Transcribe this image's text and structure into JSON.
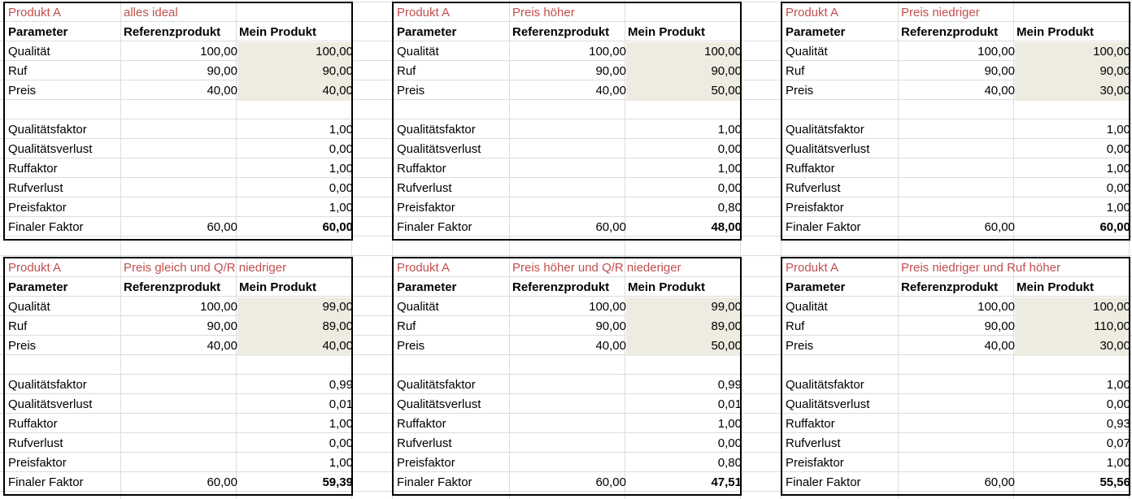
{
  "labels": {
    "parameter": "Parameter",
    "reference": "Referenzprodukt",
    "mine": "Mein Produkt",
    "qualitaet": "Qualität",
    "ruf": "Ruf",
    "preis": "Preis",
    "qfaktor": "Qualitätsfaktor",
    "qverlust": "Qualitätsverlust",
    "rfaktor": "Ruffaktor",
    "rverlust": "Rufverlust",
    "pfaktor": "Preisfaktor",
    "final": "Finaler Faktor"
  },
  "blocks": [
    {
      "product": "Produkt A",
      "scenario": "alles ideal",
      "ref": {
        "q": "100,00",
        "r": "90,00",
        "p": "40,00",
        "final": "60,00"
      },
      "mine": {
        "q": "100,00",
        "r": "90,00",
        "p": "40,00"
      },
      "results": {
        "qfaktor": "1,00",
        "qverlust": "0,00",
        "rfaktor": "1,00",
        "rverlust": "0,00",
        "pfaktor": "1,00",
        "final": "60,00"
      }
    },
    {
      "product": "Produkt A",
      "scenario": "Preis höher",
      "ref": {
        "q": "100,00",
        "r": "90,00",
        "p": "40,00",
        "final": "60,00"
      },
      "mine": {
        "q": "100,00",
        "r": "90,00",
        "p": "50,00"
      },
      "results": {
        "qfaktor": "1,00",
        "qverlust": "0,00",
        "rfaktor": "1,00",
        "rverlust": "0,00",
        "pfaktor": "0,80",
        "final": "48,00"
      }
    },
    {
      "product": "Produkt A",
      "scenario": "Preis niedriger",
      "ref": {
        "q": "100,00",
        "r": "90,00",
        "p": "40,00",
        "final": "60,00"
      },
      "mine": {
        "q": "100,00",
        "r": "90,00",
        "p": "30,00"
      },
      "results": {
        "qfaktor": "1,00",
        "qverlust": "0,00",
        "rfaktor": "1,00",
        "rverlust": "0,00",
        "pfaktor": "1,00",
        "final": "60,00"
      }
    },
    {
      "product": "Produkt A",
      "scenario": "Preis gleich und Q/R niedriger",
      "ref": {
        "q": "100,00",
        "r": "90,00",
        "p": "40,00",
        "final": "60,00"
      },
      "mine": {
        "q": "99,00",
        "r": "89,00",
        "p": "40,00"
      },
      "results": {
        "qfaktor": "0,99",
        "qverlust": "0,01",
        "rfaktor": "1,00",
        "rverlust": "0,00",
        "pfaktor": "1,00",
        "final": "59,39"
      }
    },
    {
      "product": "Produkt A",
      "scenario": "Preis höher und Q/R niederiger",
      "ref": {
        "q": "100,00",
        "r": "90,00",
        "p": "40,00",
        "final": "60,00"
      },
      "mine": {
        "q": "99,00",
        "r": "89,00",
        "p": "50,00"
      },
      "results": {
        "qfaktor": "0,99",
        "qverlust": "0,01",
        "rfaktor": "1,00",
        "rverlust": "0,00",
        "pfaktor": "0,80",
        "final": "47,51"
      }
    },
    {
      "product": "Produkt A",
      "scenario": "Preis niedriger und Ruf höher",
      "ref": {
        "q": "100,00",
        "r": "90,00",
        "p": "40,00",
        "final": "60,00"
      },
      "mine": {
        "q": "100,00",
        "r": "110,00",
        "p": "30,00"
      },
      "results": {
        "qfaktor": "1,00",
        "qverlust": "0,00",
        "rfaktor": "0,93",
        "rverlust": "0,07",
        "pfaktor": "1,00",
        "final": "55,56"
      }
    }
  ]
}
